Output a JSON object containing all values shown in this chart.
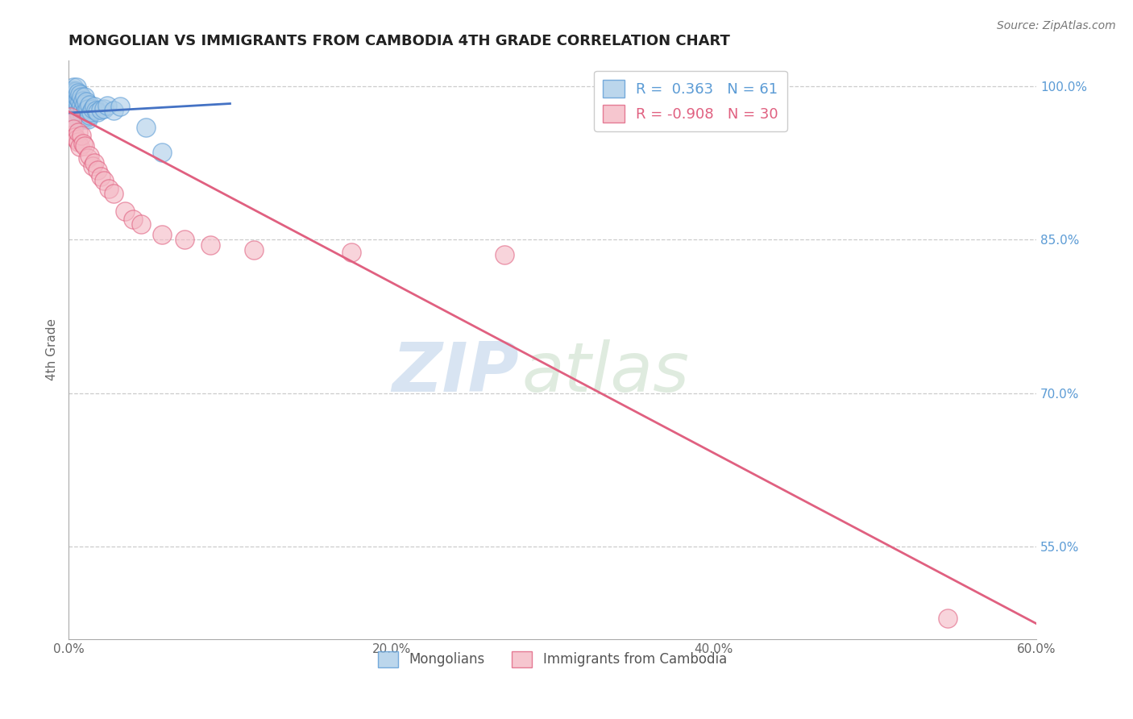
{
  "title": "MONGOLIAN VS IMMIGRANTS FROM CAMBODIA 4TH GRADE CORRELATION CHART",
  "source_text": "Source: ZipAtlas.com",
  "ylabel": "4th Grade",
  "xlim": [
    0.0,
    0.6
  ],
  "ylim": [
    0.46,
    1.025
  ],
  "xtick_labels": [
    "0.0%",
    "20.0%",
    "40.0%",
    "60.0%"
  ],
  "xtick_values": [
    0.0,
    0.2,
    0.4,
    0.6
  ],
  "ytick_labels": [
    "100.0%",
    "85.0%",
    "70.0%",
    "55.0%"
  ],
  "ytick_values": [
    1.0,
    0.85,
    0.7,
    0.55
  ],
  "blue_r": 0.363,
  "blue_n": 61,
  "pink_r": -0.908,
  "pink_n": 30,
  "blue_color": "#aacce8",
  "pink_color": "#f4b8c4",
  "blue_edge_color": "#5b9bd5",
  "pink_edge_color": "#e06080",
  "blue_line_color": "#4472c4",
  "pink_line_color": "#e06080",
  "watermark_zip": "ZIP",
  "watermark_atlas": "atlas",
  "legend_label_blue": "Mongolians",
  "legend_label_pink": "Immigrants from Cambodia",
  "blue_scatter_x": [
    0.001,
    0.001,
    0.001,
    0.002,
    0.002,
    0.002,
    0.002,
    0.003,
    0.003,
    0.003,
    0.003,
    0.003,
    0.004,
    0.004,
    0.004,
    0.004,
    0.005,
    0.005,
    0.005,
    0.005,
    0.005,
    0.005,
    0.006,
    0.006,
    0.006,
    0.006,
    0.006,
    0.007,
    0.007,
    0.007,
    0.007,
    0.008,
    0.008,
    0.008,
    0.008,
    0.009,
    0.009,
    0.009,
    0.01,
    0.01,
    0.01,
    0.01,
    0.011,
    0.011,
    0.011,
    0.012,
    0.012,
    0.013,
    0.013,
    0.014,
    0.015,
    0.016,
    0.017,
    0.018,
    0.02,
    0.022,
    0.024,
    0.028,
    0.032,
    0.048,
    0.058
  ],
  "blue_scatter_y": [
    0.975,
    0.985,
    0.995,
    0.97,
    0.98,
    0.988,
    0.993,
    0.975,
    0.983,
    0.99,
    0.996,
    0.999,
    0.972,
    0.98,
    0.988,
    0.995,
    0.97,
    0.977,
    0.984,
    0.99,
    0.995,
    0.999,
    0.968,
    0.975,
    0.982,
    0.988,
    0.994,
    0.97,
    0.978,
    0.985,
    0.992,
    0.968,
    0.975,
    0.982,
    0.99,
    0.97,
    0.978,
    0.986,
    0.968,
    0.975,
    0.983,
    0.99,
    0.97,
    0.977,
    0.985,
    0.968,
    0.978,
    0.972,
    0.982,
    0.975,
    0.978,
    0.98,
    0.976,
    0.975,
    0.977,
    0.978,
    0.981,
    0.976,
    0.98,
    0.96,
    0.935
  ],
  "pink_scatter_x": [
    0.001,
    0.002,
    0.003,
    0.004,
    0.005,
    0.006,
    0.006,
    0.007,
    0.008,
    0.009,
    0.01,
    0.012,
    0.013,
    0.015,
    0.016,
    0.018,
    0.02,
    0.022,
    0.025,
    0.028,
    0.035,
    0.04,
    0.045,
    0.058,
    0.072,
    0.088,
    0.115,
    0.175,
    0.27,
    0.545
  ],
  "pink_scatter_y": [
    0.97,
    0.965,
    0.958,
    0.95,
    0.948,
    0.946,
    0.955,
    0.941,
    0.952,
    0.944,
    0.942,
    0.93,
    0.932,
    0.922,
    0.925,
    0.918,
    0.912,
    0.908,
    0.9,
    0.895,
    0.878,
    0.87,
    0.865,
    0.855,
    0.85,
    0.845,
    0.84,
    0.838,
    0.835,
    0.48
  ],
  "blue_trendline_x": [
    0.0,
    0.1
  ],
  "blue_trendline_y": [
    0.974,
    0.983
  ],
  "pink_trendline_x": [
    0.0,
    0.6
  ],
  "pink_trendline_y": [
    0.975,
    0.475
  ]
}
